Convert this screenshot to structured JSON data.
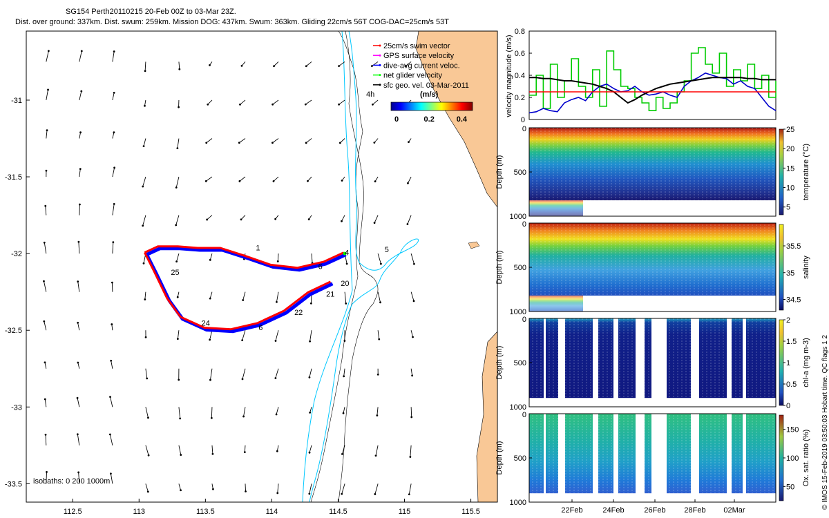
{
  "title": {
    "line1": "SG154 Perth20110215 20-Feb 00Z to 03-Mar 23Z.",
    "line2": "Dist. over ground: 337km. Dist. swum: 259km. Mission DOG: 437km. Swum: 363km. Gliding 22cm/s 56T COG-DAC=25cm/s 53T"
  },
  "legend": {
    "items": [
      {
        "label": "25cm/s swim vector",
        "color": "#ff0000"
      },
      {
        "label": "GPS surface velocity",
        "color": "#ff00ff"
      },
      {
        "label": "dive-avg current veloc.",
        "color": "#0000ff"
      },
      {
        "label": "net glider velocity",
        "color": "#00ff00"
      },
      {
        "label": "sfc geo. vel. 03-Mar-2011",
        "color": "#000000"
      }
    ],
    "colorbar_title": "(m/s)",
    "colorbar_ticks": [
      "0",
      "0.2",
      "0.4"
    ],
    "scale_label": "4h"
  },
  "isobaths_note": "isobaths: 0   200   1000m",
  "copyright": "© IMOS 15-Feb-2019 03:50:03 Hobart time. QC flags 1  2",
  "colors": {
    "land": "#f9c896",
    "isobath_cyan": "#00c8ff",
    "track_red": "#ff0000",
    "track_blue": "#0000ff",
    "speed_green": "#00ff00"
  },
  "chart_data": [
    {
      "type": "map",
      "xlim": [
        112.15,
        115.7
      ],
      "ylim": [
        -33.62,
        -30.55
      ],
      "x_ticks": [
        "112.5",
        "113",
        "113.5",
        "114",
        "114.5",
        "115",
        "115.5"
      ],
      "y_ticks": [
        "-31",
        "-31.5",
        "-32",
        "-32.5",
        "-33",
        "-33.5"
      ],
      "track_outbound": [
        [
          114.55,
          -32.0
        ],
        [
          114.4,
          -32.06
        ],
        [
          114.2,
          -32.1
        ],
        [
          114.0,
          -32.08
        ],
        [
          113.8,
          -32.02
        ],
        [
          113.62,
          -31.97
        ],
        [
          113.45,
          -31.97
        ],
        [
          113.3,
          -31.96
        ],
        [
          113.15,
          -31.96
        ],
        [
          113.05,
          -32.0
        ]
      ],
      "track_return": [
        [
          113.05,
          -32.0
        ],
        [
          113.12,
          -32.12
        ],
        [
          113.22,
          -32.3
        ],
        [
          113.32,
          -32.42
        ],
        [
          113.5,
          -32.49
        ],
        [
          113.7,
          -32.5
        ],
        [
          113.9,
          -32.46
        ],
        [
          114.1,
          -32.38
        ],
        [
          114.28,
          -32.26
        ],
        [
          114.45,
          -32.19
        ]
      ],
      "time_labels": [
        {
          "text": "1",
          "x": 113.88,
          "y": -31.98
        },
        {
          "text": "4",
          "x": 114.55,
          "y": -32.01
        },
        {
          "text": "5",
          "x": 114.85,
          "y": -31.99
        },
        {
          "text": "6",
          "x": 114.35,
          "y": -32.1
        },
        {
          "text": "20",
          "x": 114.52,
          "y": -32.21
        },
        {
          "text": "21",
          "x": 114.41,
          "y": -32.28
        },
        {
          "text": "22",
          "x": 114.17,
          "y": -32.4
        },
        {
          "text": "24",
          "x": 113.47,
          "y": -32.47
        },
        {
          "text": "25",
          "x": 113.24,
          "y": -32.14
        },
        {
          "text": "6",
          "x": 113.9,
          "y": -32.5
        }
      ]
    },
    {
      "type": "line",
      "ylabel": "velocity magnitude (m/s)",
      "ylim": [
        0,
        0.8
      ],
      "y_ticks": [
        "0",
        "0.2",
        "0.4",
        "0.6",
        "0.8"
      ],
      "series": [
        {
          "color": "#00cc00",
          "values": [
            0.22,
            0.4,
            0.1,
            0.5,
            0.2,
            0.35,
            0.55,
            0.3,
            0.2,
            0.45,
            0.12,
            0.62,
            0.45,
            0.3,
            0.28,
            0.2,
            0.15,
            0.08,
            0.2,
            0.1,
            0.15,
            0.25,
            0.35,
            0.6,
            0.65,
            0.5,
            0.42,
            0.6,
            0.3,
            0.45,
            0.35,
            0.5,
            0.28,
            0.4,
            0.2,
            0.35
          ]
        },
        {
          "color": "#0000cc",
          "values": [
            0.06,
            0.07,
            0.1,
            0.08,
            0.07,
            0.15,
            0.18,
            0.2,
            0.17,
            0.25,
            0.3,
            0.32,
            0.28,
            0.25,
            0.26,
            0.3,
            0.25,
            0.22,
            0.23,
            0.25,
            0.22,
            0.2,
            0.3,
            0.35,
            0.38,
            0.42,
            0.4,
            0.38,
            0.37,
            0.32,
            0.35,
            0.3,
            0.28,
            0.2,
            0.12,
            0.08
          ]
        },
        {
          "color": "#000000",
          "values": [
            0.38,
            0.38,
            0.37,
            0.37,
            0.36,
            0.35,
            0.35,
            0.34,
            0.33,
            0.32,
            0.3,
            0.28,
            0.25,
            0.2,
            0.15,
            0.18,
            0.22,
            0.25,
            0.28,
            0.3,
            0.32,
            0.33,
            0.34,
            0.35,
            0.36,
            0.37,
            0.38,
            0.38,
            0.38,
            0.38,
            0.38,
            0.37,
            0.37,
            0.36,
            0.36,
            0.36
          ]
        },
        {
          "color": "#ff0000",
          "values": [
            0.25,
            0.25,
            0.25,
            0.25,
            0.25,
            0.25,
            0.25,
            0.25,
            0.25,
            0.25,
            0.25,
            0.25,
            0.25,
            0.25,
            0.25,
            0.25,
            0.25,
            0.25,
            0.25,
            0.25,
            0.25,
            0.25,
            0.25,
            0.25,
            0.25,
            0.25,
            0.25,
            0.25,
            0.25,
            0.25,
            0.25,
            0.25,
            0.25,
            0.25,
            0.25,
            0.25
          ]
        }
      ]
    },
    {
      "type": "heatmap",
      "ylabel": "Depth (m)",
      "clabel": "temperature (°C)",
      "y_ticks": [
        "0",
        "500",
        "1000"
      ],
      "c_ticks": [
        "25",
        "20",
        "15",
        "10",
        "5"
      ],
      "clim": [
        3,
        25
      ]
    },
    {
      "type": "heatmap",
      "ylabel": "Depth (m)",
      "clabel": "salinity",
      "y_ticks": [
        "0",
        "500",
        "1000"
      ],
      "c_ticks": [
        "35.5",
        "35",
        "34.5"
      ],
      "clim": [
        34.3,
        35.9
      ]
    },
    {
      "type": "heatmap",
      "ylabel": "Depth (m)",
      "clabel": "chl-a (mg m-3)",
      "y_ticks": [
        "0",
        "500",
        "1000"
      ],
      "c_ticks": [
        "2",
        "1.5",
        "1",
        "0.5",
        "0"
      ],
      "clim": [
        0,
        2
      ]
    },
    {
      "type": "heatmap",
      "ylabel": "Depth (m)",
      "clabel": "Ox. sat. ratio (%)",
      "y_ticks": [
        "0",
        "500",
        "1000"
      ],
      "c_ticks": [
        "150",
        "100",
        "50"
      ],
      "clim": [
        25,
        175
      ],
      "x_ticks": [
        "22Feb",
        "24Feb",
        "26Feb",
        "28Feb",
        "02Mar"
      ]
    }
  ]
}
